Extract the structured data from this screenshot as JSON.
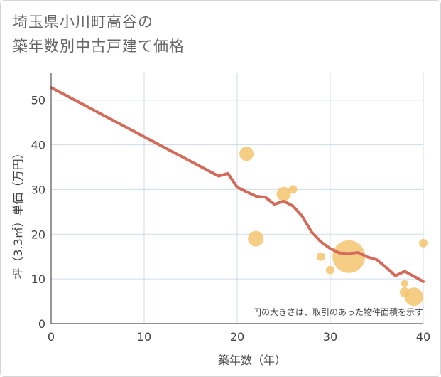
{
  "title_line1": "埼玉県小川町高谷の",
  "title_line2": "築年数別中古戸建て価格",
  "colors": {
    "line": "#d36b5a",
    "bubble": "#f5c46e",
    "grid": "#d0dbe6",
    "axis": "#555555"
  },
  "chart_data": {
    "type": "scatter",
    "xlabel": "築年数（年）",
    "ylabel": "坪（3.3㎡）単価（万円）",
    "xlim": [
      0,
      40
    ],
    "ylim": [
      0,
      56
    ],
    "x_ticks": [
      0,
      10,
      20,
      30,
      40
    ],
    "y_ticks": [
      0,
      10,
      20,
      30,
      40,
      50
    ],
    "annotation": "円の大きさは、取引のあった物件面積を示す",
    "trend_line": {
      "x": [
        0,
        18,
        19,
        20,
        21,
        22,
        23,
        24,
        25,
        26,
        27,
        28,
        29,
        30,
        31,
        32,
        33,
        34,
        35,
        36,
        37,
        38,
        39,
        40
      ],
      "y": [
        52.8,
        33.0,
        33.6,
        30.5,
        29.5,
        28.5,
        28.3,
        26.7,
        27.4,
        26.3,
        24.0,
        20.5,
        18.3,
        16.8,
        15.8,
        15.7,
        15.9,
        14.9,
        14.3,
        12.6,
        10.7,
        11.7,
        10.6,
        9.4
      ]
    },
    "bubbles": [
      {
        "x": 21,
        "y": 38,
        "size": 10
      },
      {
        "x": 22,
        "y": 19,
        "size": 11
      },
      {
        "x": 25,
        "y": 29,
        "size": 10
      },
      {
        "x": 26,
        "y": 30,
        "size": 6
      },
      {
        "x": 29,
        "y": 15,
        "size": 6
      },
      {
        "x": 30,
        "y": 12,
        "size": 6
      },
      {
        "x": 32,
        "y": 15,
        "size": 23
      },
      {
        "x": 38,
        "y": 9,
        "size": 5
      },
      {
        "x": 38,
        "y": 7,
        "size": 7
      },
      {
        "x": 39,
        "y": 6,
        "size": 13
      },
      {
        "x": 40,
        "y": 18,
        "size": 6
      }
    ]
  }
}
